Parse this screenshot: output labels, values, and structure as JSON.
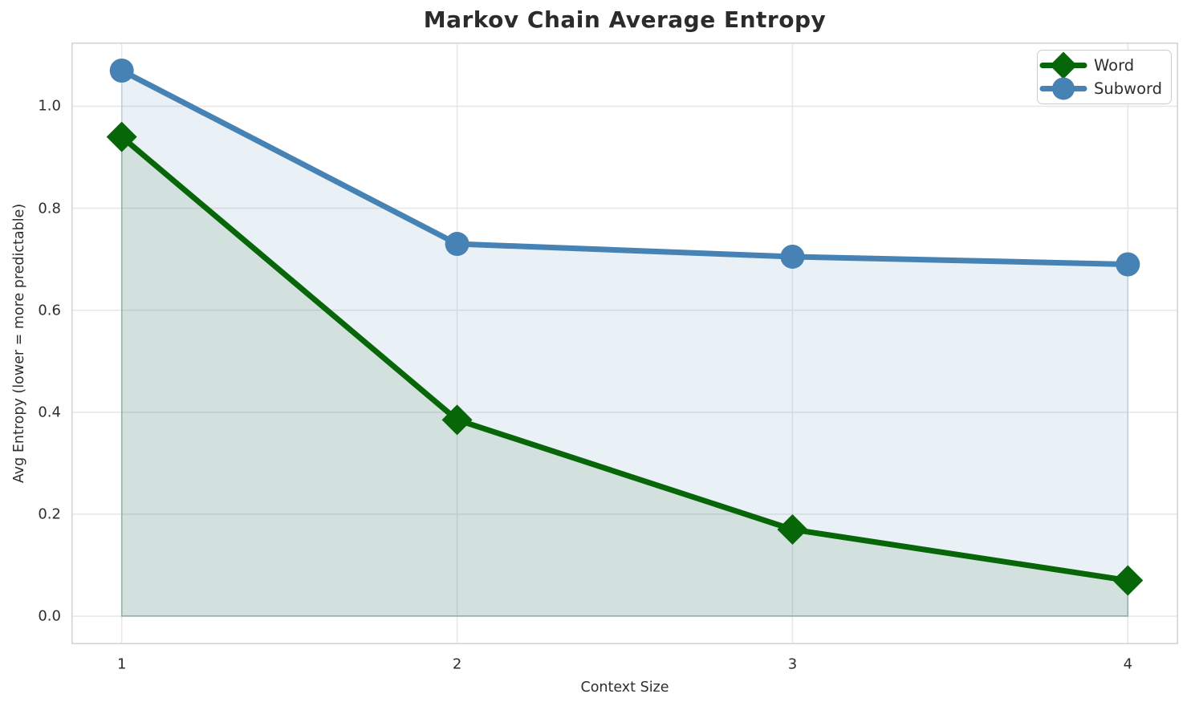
{
  "chart_data": {
    "type": "line",
    "title": "Markov Chain Average Entropy",
    "xlabel": "Context Size",
    "ylabel": "Avg Entropy (lower = more predictable)",
    "x": [
      1,
      2,
      3,
      4
    ],
    "series": [
      {
        "name": "Word",
        "values": [
          0.94,
          0.385,
          0.17,
          0.07
        ],
        "color": "#076607",
        "marker": "diamond",
        "fill_to_zero": true,
        "fill_alpha": 0.1,
        "line_width": 7
      },
      {
        "name": "Subword",
        "values": [
          1.07,
          0.73,
          0.705,
          0.69
        ],
        "color": "#4682b4",
        "marker": "circle",
        "fill_to_zero": true,
        "fill_alpha": 0.12,
        "line_width": 7
      }
    ],
    "xticks": {
      "values": [
        1,
        2,
        3,
        4
      ],
      "labels": [
        "1",
        "2",
        "3",
        "4"
      ]
    },
    "yticks": {
      "values": [
        0,
        0.2,
        0.4,
        0.6,
        0.8,
        1.0
      ],
      "labels": [
        "0.0",
        "0.2",
        "0.4",
        "0.6",
        "0.8",
        "1.0"
      ]
    },
    "xlim": [
      0.85,
      4.15
    ],
    "ylim": [
      -0.055,
      1.125
    ],
    "grid": true,
    "legend": {
      "position": "upper right",
      "entries": [
        "Word",
        "Subword"
      ]
    },
    "style": {
      "grid_color": "#e8e8e8",
      "spine_color": "#d6d6d6",
      "text_color": "#2e2e2e",
      "background": "#ffffff"
    }
  }
}
